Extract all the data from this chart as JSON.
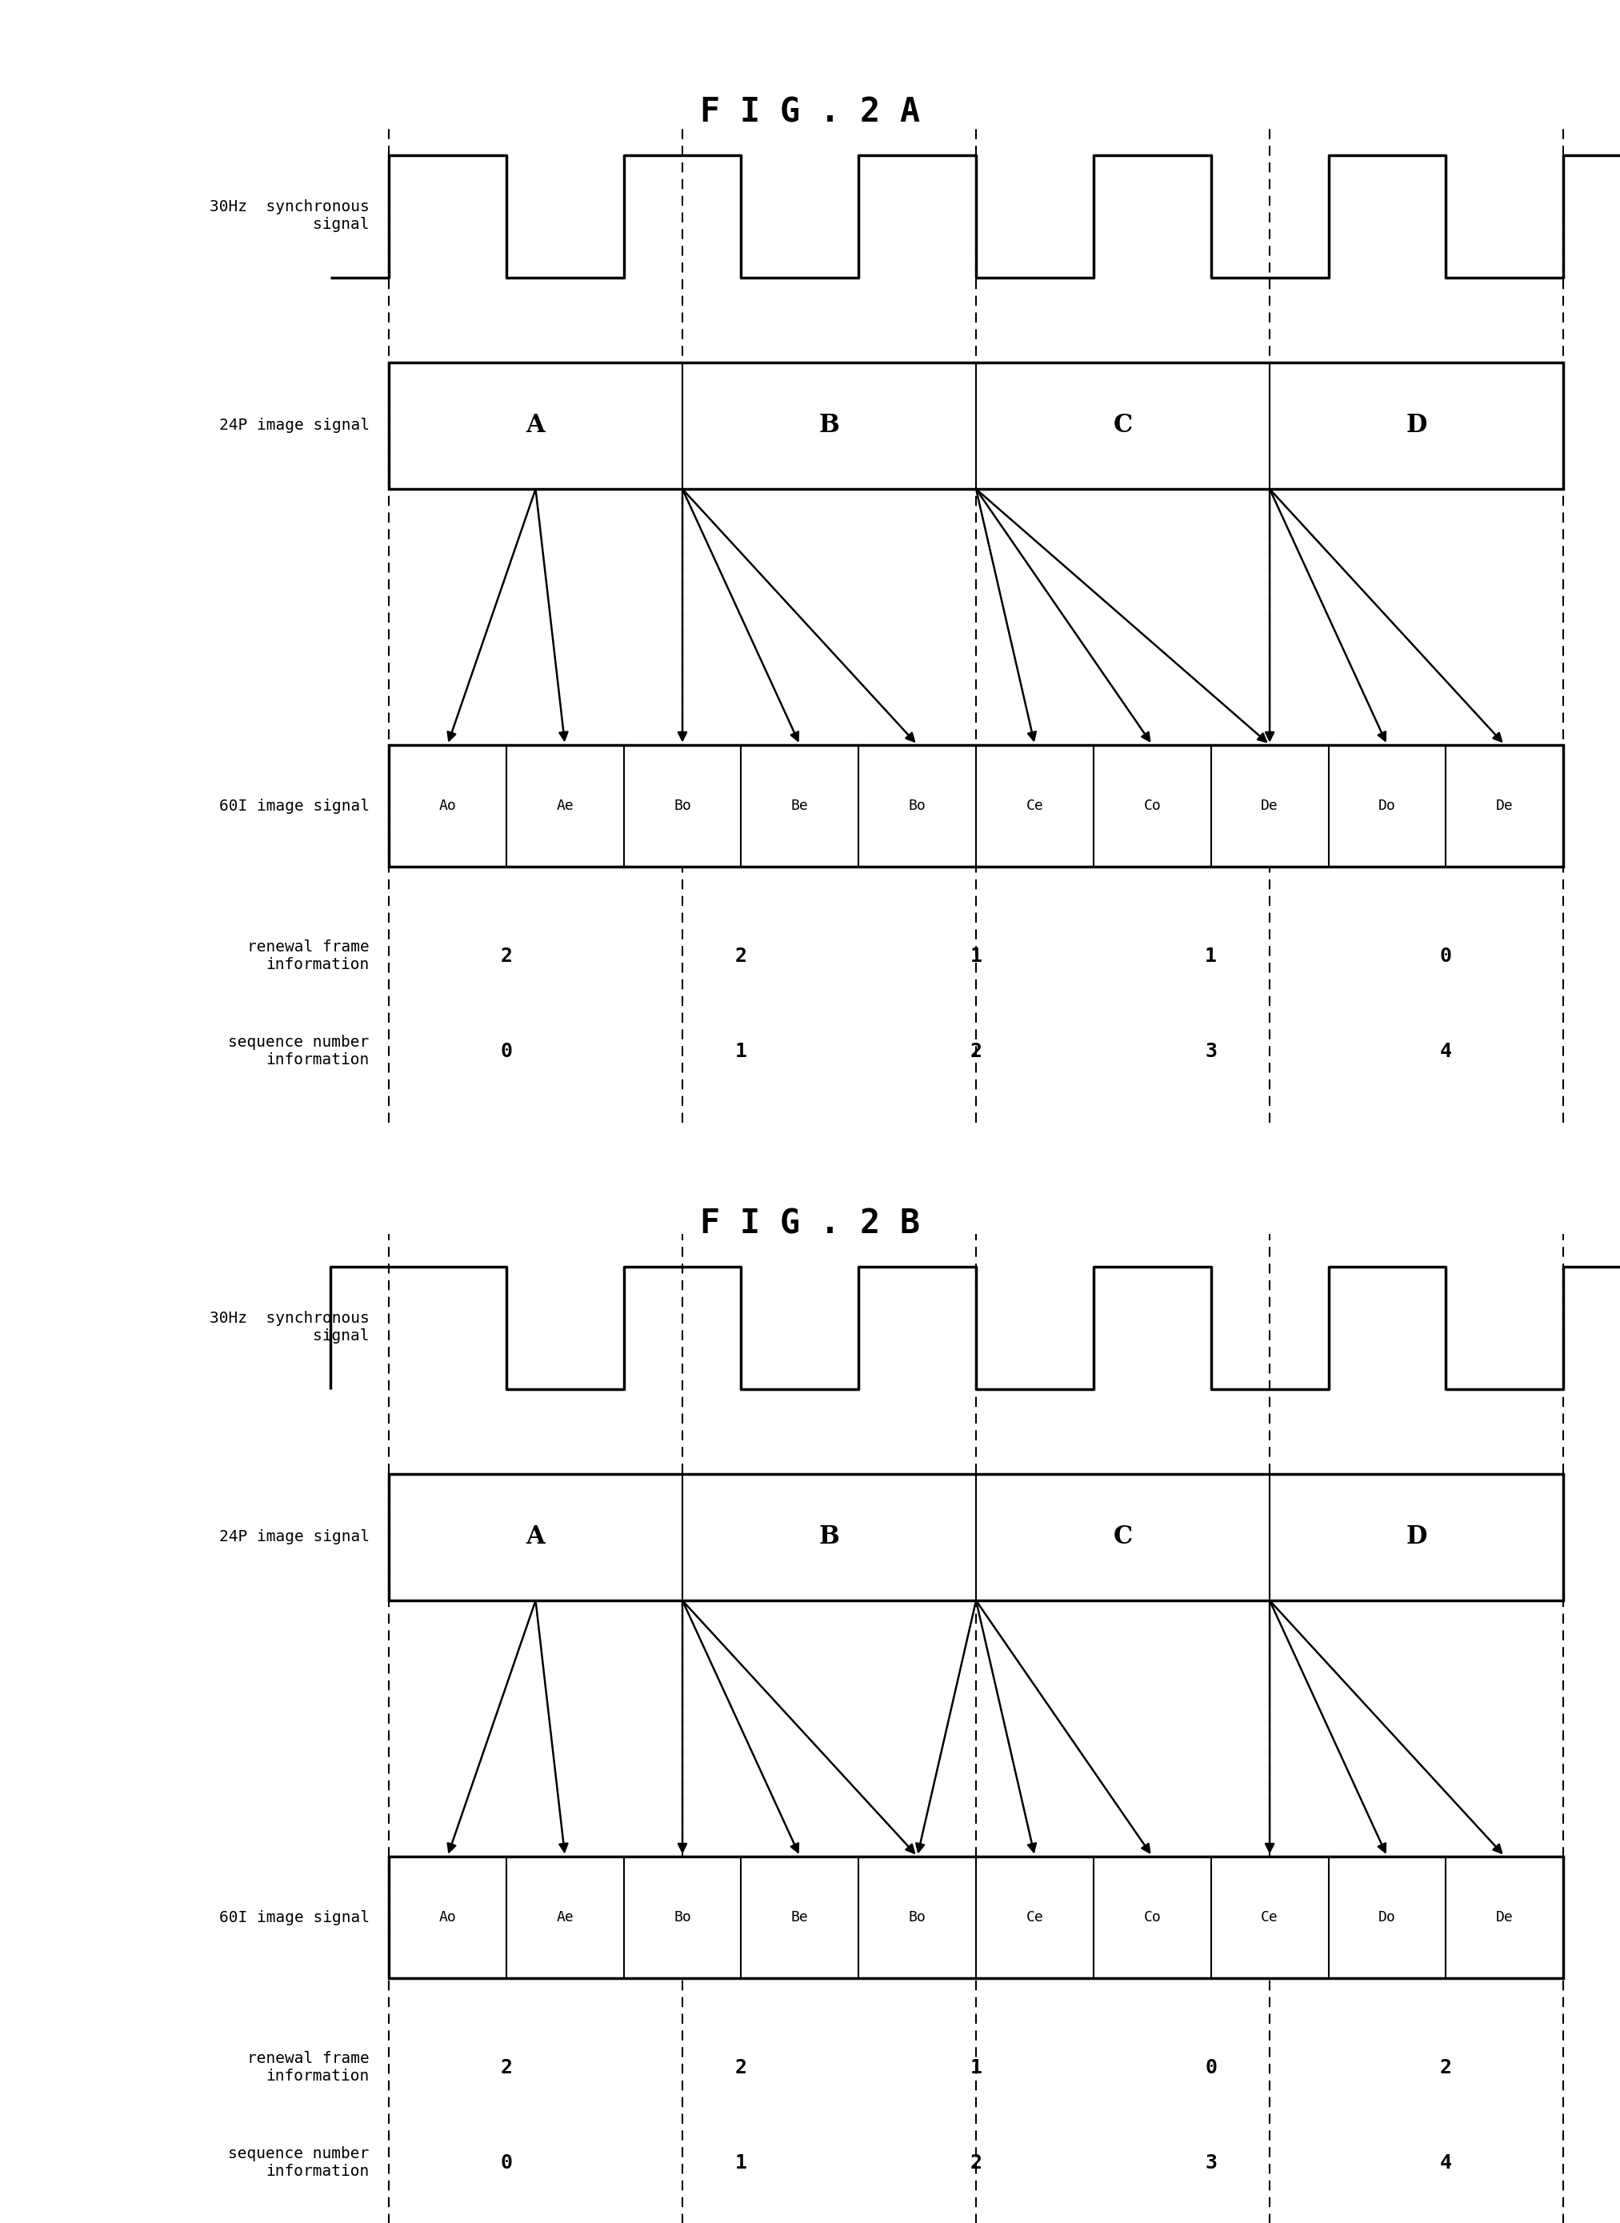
{
  "fig2a_title": "F I G . 2 A",
  "fig2b_title": "F I G . 2 B",
  "fig2a_24p_labels": [
    "A",
    "B",
    "C",
    "D"
  ],
  "fig2a_60i_labels": [
    "Ao",
    "Ae",
    "Bo",
    "Be",
    "Bo",
    "Ce",
    "Co",
    "De",
    "Do",
    "De"
  ],
  "fig2b_24p_labels": [
    "A",
    "B",
    "C",
    "D"
  ],
  "fig2b_60i_labels": [
    "Ao",
    "Ae",
    "Bo",
    "Be",
    "Bo",
    "Ce",
    "Co",
    "Ce",
    "Do",
    "De"
  ],
  "fig2a_renewal": [
    "2",
    "2",
    "1",
    "1",
    "0"
  ],
  "fig2a_sequence": [
    "0",
    "1",
    "2",
    "3",
    "4"
  ],
  "fig2b_renewal": [
    "2",
    "2",
    "1",
    "0",
    "2"
  ],
  "fig2b_sequence": [
    "0",
    "1",
    "2",
    "3",
    "4"
  ],
  "fig2a_arrows_src_dst": [
    [
      0.0,
      0
    ],
    [
      0.0,
      1
    ],
    [
      2.5,
      2
    ],
    [
      2.5,
      3
    ],
    [
      2.5,
      4
    ],
    [
      5.0,
      4
    ],
    [
      5.0,
      5
    ],
    [
      5.0,
      6
    ],
    [
      7.5,
      7
    ],
    [
      7.5,
      8
    ],
    [
      7.5,
      9
    ]
  ],
  "fig2b_arrows_src_dst": [
    [
      0.0,
      0
    ],
    [
      0.0,
      1
    ],
    [
      2.5,
      2
    ],
    [
      2.5,
      3
    ],
    [
      2.5,
      4
    ],
    [
      5.0,
      4
    ],
    [
      5.0,
      5
    ],
    [
      5.0,
      6
    ],
    [
      7.5,
      7
    ],
    [
      7.5,
      8
    ],
    [
      7.5,
      9
    ]
  ],
  "background": "#ffffff"
}
